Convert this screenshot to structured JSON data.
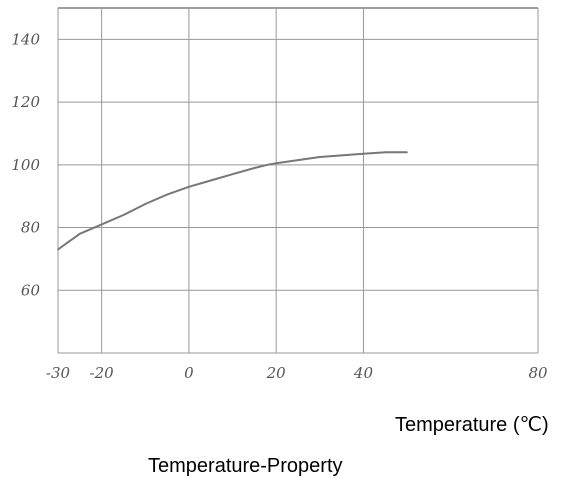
{
  "chart_data": {
    "type": "line",
    "title": "Temperature-Property",
    "xlabel": "Temperature (℃)",
    "ylabel": "",
    "xlim": [
      -30,
      80
    ],
    "ylim": [
      40,
      150
    ],
    "x_ticks": [
      "-30",
      "-20",
      "0",
      "20",
      "40",
      "80"
    ],
    "y_ticks": [
      "140",
      "120",
      "100",
      "80",
      "60"
    ],
    "grid": true,
    "series": [
      {
        "x": [
          -30,
          -28,
          -25,
          -20,
          -15,
          -10,
          -5,
          0,
          5,
          10,
          15,
          18,
          20,
          25,
          30,
          35,
          40,
          45,
          50
        ],
        "y": [
          73,
          75,
          78,
          81,
          84,
          87.5,
          90.5,
          93,
          95,
          97,
          99,
          100,
          100.5,
          101.5,
          102.5,
          103,
          103.5,
          104,
          104
        ]
      }
    ],
    "colors": {
      "line": "#777777",
      "grid": "#999999"
    }
  }
}
